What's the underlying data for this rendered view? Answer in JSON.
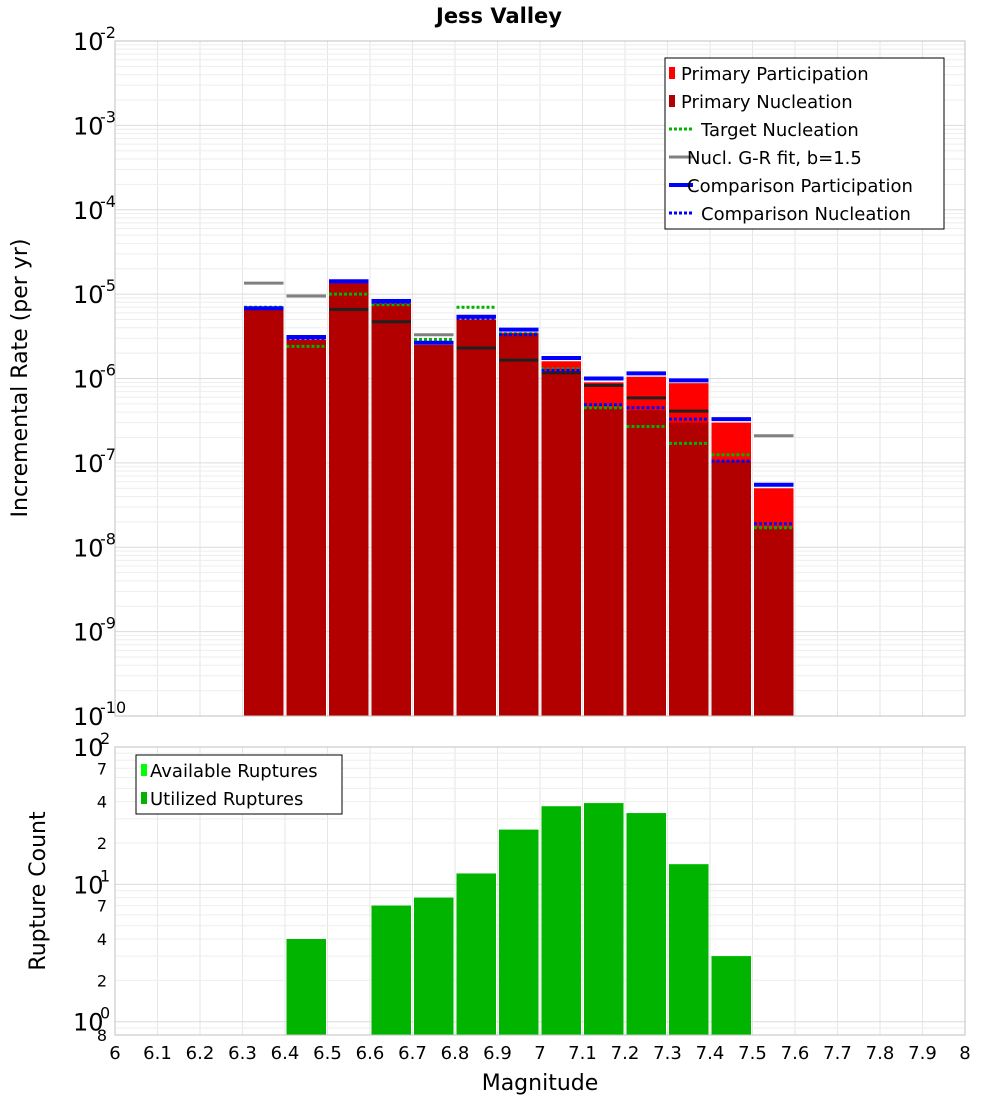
{
  "chart_data": [
    {
      "type": "bar",
      "title": "Jess Valley",
      "ylabel": "Incremental Rate (per yr)",
      "xlabel": "",
      "yscale": "log",
      "ylim": [
        1e-10,
        0.01
      ],
      "xlim": [
        6.0,
        8.0
      ],
      "grid": true,
      "legend_position": "top-right",
      "y_ticks": [
        {
          "value": 0.01,
          "base": "10",
          "exp": "-2"
        },
        {
          "value": 0.001,
          "base": "10",
          "exp": "-3"
        },
        {
          "value": 0.0001,
          "base": "10",
          "exp": "-4"
        },
        {
          "value": 1e-05,
          "base": "10",
          "exp": "-5"
        },
        {
          "value": 1e-06,
          "base": "10",
          "exp": "-6"
        },
        {
          "value": 1e-07,
          "base": "10",
          "exp": "-7"
        },
        {
          "value": 1e-08,
          "base": "10",
          "exp": "-8"
        },
        {
          "value": 1e-09,
          "base": "10",
          "exp": "-9"
        },
        {
          "value": 1e-10,
          "base": "10",
          "exp": "-10"
        }
      ],
      "x": [
        6.35,
        6.45,
        6.55,
        6.65,
        6.75,
        6.85,
        6.95,
        7.05,
        7.15,
        7.25,
        7.35,
        7.45,
        7.55
      ],
      "bin_width": 0.1,
      "series": [
        {
          "name": "Primary Participation",
          "kind": "bar",
          "color": "#ff0000",
          "values": [
            6.5e-06,
            2.9e-06,
            1.35e-05,
            7.8e-06,
            2.5e-06,
            5e-06,
            3.5e-06,
            1.6e-06,
            9e-07,
            1.05e-06,
            8.8e-07,
            3e-07,
            5e-08
          ]
        },
        {
          "name": "Primary Nucleation",
          "kind": "bar",
          "color": "#b20000",
          "values": [
            6.5e-06,
            2.9e-06,
            1.35e-05,
            7.8e-06,
            2.5e-06,
            5e-06,
            3.4e-06,
            1.2e-06,
            4.5e-07,
            4.2e-07,
            3e-07,
            1.05e-07,
            1.7e-08
          ]
        },
        {
          "name": "Target Nucleation",
          "kind": "dotted-line",
          "color": "#00b400",
          "values": [
            7e-06,
            2.4e-06,
            1e-05,
            7.5e-06,
            2.9e-06,
            7e-06,
            3.4e-06,
            1.3e-06,
            4.5e-07,
            2.7e-07,
            1.7e-07,
            1.25e-07,
            1.7e-08
          ]
        },
        {
          "name": "Nucl. G-R fit, b=1.5",
          "kind": "line",
          "color": "#808080",
          "values": [
            1.35e-05,
            9.5e-06,
            null,
            null,
            3.3e-06,
            null,
            null,
            null,
            null,
            null,
            null,
            null,
            2.1e-07
          ]
        },
        {
          "name": "Nucl. G-R fit (segments)",
          "kind": "line",
          "color": "#202020",
          "legend": false,
          "values": [
            null,
            null,
            6.6e-06,
            4.7e-06,
            null,
            2.3e-06,
            1.65e-06,
            1.17e-06,
            8.3e-07,
            5.9e-07,
            4.1e-07,
            null,
            null
          ]
        },
        {
          "name": "Comparison Participation",
          "kind": "line",
          "color": "#0000ff",
          "values": [
            6.8e-06,
            3.1e-06,
            1.42e-05,
            8.3e-06,
            2.65e-06,
            5.4e-06,
            3.8e-06,
            1.75e-06,
            1e-06,
            1.15e-06,
            9.5e-07,
            3.3e-07,
            5.5e-08
          ]
        },
        {
          "name": "Comparison Nucleation",
          "kind": "dotted-line",
          "color": "#0000ff",
          "values": [
            6.8e-06,
            3e-06,
            1.4e-05,
            8e-06,
            2.65e-06,
            5.2e-06,
            3.3e-06,
            1.25e-06,
            4.9e-07,
            4.5e-07,
            3.3e-07,
            1.05e-07,
            1.9e-08
          ]
        }
      ],
      "legend": [
        {
          "label": "Primary Participation",
          "style": "box",
          "color": "#ff0000"
        },
        {
          "label": "Primary Nucleation",
          "style": "box",
          "color": "#b20000"
        },
        {
          "label": "Target Nucleation",
          "style": "dotted",
          "color": "#00b400"
        },
        {
          "label": "Nucl. G-R fit, b=1.5",
          "style": "line",
          "color": "#808080"
        },
        {
          "label": "Comparison Participation",
          "style": "line",
          "color": "#0000ff"
        },
        {
          "label": "Comparison Nucleation",
          "style": "dotted",
          "color": "#0000ff"
        }
      ]
    },
    {
      "type": "bar",
      "title": "",
      "ylabel": "Rupture Count",
      "xlabel": "Magnitude",
      "yscale": "log",
      "ylim": [
        0.8,
        100
      ],
      "xlim": [
        6.0,
        8.0
      ],
      "grid": true,
      "legend_position": "top-left",
      "y_ticks": [
        {
          "value": 100,
          "base": "10",
          "exp": "2"
        },
        {
          "value": 70,
          "label": "7"
        },
        {
          "value": 40,
          "label": "4"
        },
        {
          "value": 20,
          "label": "2"
        },
        {
          "value": 10,
          "base": "10",
          "exp": "1"
        },
        {
          "value": 7,
          "label": "7"
        },
        {
          "value": 4,
          "label": "4"
        },
        {
          "value": 2,
          "label": "2"
        },
        {
          "value": 1,
          "base": "10",
          "exp": "0"
        },
        {
          "value": 0.8,
          "label": "8"
        }
      ],
      "x_ticks": [
        "6",
        "6.1",
        "6.2",
        "6.3",
        "6.4",
        "6.5",
        "6.6",
        "6.7",
        "6.8",
        "6.9",
        "7",
        "7.1",
        "7.2",
        "7.3",
        "7.4",
        "7.5",
        "7.6",
        "7.7",
        "7.8",
        "7.9",
        "8"
      ],
      "x": [
        6.45,
        6.65,
        6.75,
        6.85,
        6.95,
        7.05,
        7.15,
        7.25,
        7.35,
        7.45
      ],
      "bin_width": 0.1,
      "series": [
        {
          "name": "Available Ruptures",
          "kind": "bar",
          "color": "#00ff00",
          "values": [
            4,
            7,
            8,
            12,
            25,
            37,
            39,
            33,
            14,
            3
          ]
        },
        {
          "name": "Utilized Ruptures",
          "kind": "bar",
          "color": "#00b400",
          "values": [
            4,
            7,
            8,
            12,
            25,
            37,
            39,
            33,
            14,
            3
          ]
        }
      ],
      "legend": [
        {
          "label": "Available Ruptures",
          "style": "box",
          "color": "#00ff00"
        },
        {
          "label": "Utilized Ruptures",
          "style": "box",
          "color": "#00b400"
        }
      ]
    }
  ]
}
